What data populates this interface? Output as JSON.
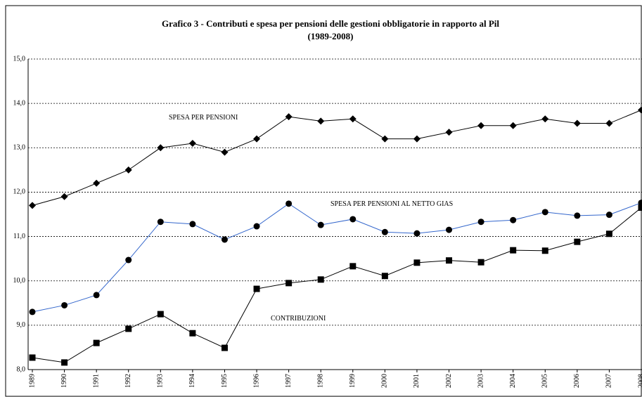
{
  "chart_data": {
    "type": "line",
    "title": "Grafico  3  -  Contributi e spesa per pensioni delle gestioni obbligatorie in rapporto al Pil",
    "subtitle": "(1989-2008)",
    "categories": [
      "1989",
      "1990",
      "1991",
      "1992",
      "1993",
      "1994",
      "1995",
      "1996",
      "1997",
      "1998",
      "1999",
      "2000",
      "2001",
      "2002",
      "2003",
      "2004",
      "2005",
      "2006",
      "2007",
      "2008"
    ],
    "series": [
      {
        "name": "SPESA PER PENSIONI",
        "color": "#000000",
        "marker": "diamond",
        "values": [
          11.7,
          11.9,
          12.2,
          12.5,
          13.0,
          13.1,
          12.9,
          13.2,
          13.7,
          13.6,
          13.65,
          13.2,
          13.2,
          13.35,
          13.5,
          13.5,
          13.65,
          13.55,
          13.55,
          13.85
        ]
      },
      {
        "name": "SPESA PER PENSIONI AL NETTO GIAS",
        "color": "#3366cc",
        "marker": "circle",
        "values": [
          9.3,
          9.45,
          9.68,
          10.47,
          11.33,
          11.28,
          10.93,
          11.23,
          11.74,
          11.26,
          11.39,
          11.1,
          11.07,
          11.15,
          11.33,
          11.37,
          11.55,
          11.47,
          11.49,
          11.76
        ]
      },
      {
        "name": "CONTRIBUZIONI",
        "color": "#000000",
        "marker": "square",
        "values": [
          8.27,
          8.16,
          8.6,
          8.92,
          9.25,
          8.82,
          8.49,
          9.82,
          9.95,
          10.03,
          10.33,
          10.11,
          10.41,
          10.46,
          10.42,
          10.69,
          10.68,
          10.88,
          11.06,
          11.65
        ]
      }
    ],
    "ylim": [
      8,
      15
    ],
    "yticks": [
      {
        "value": 8,
        "label": "8,0"
      },
      {
        "value": 9,
        "label": "9,0"
      },
      {
        "value": 10,
        "label": "10,0"
      },
      {
        "value": 11,
        "label": "11,0"
      },
      {
        "value": 12,
        "label": "12,0"
      },
      {
        "value": 13,
        "label": "13,0"
      },
      {
        "value": 14,
        "label": "14,0"
      },
      {
        "value": 15,
        "label": "15,0"
      }
    ],
    "grid": true
  }
}
